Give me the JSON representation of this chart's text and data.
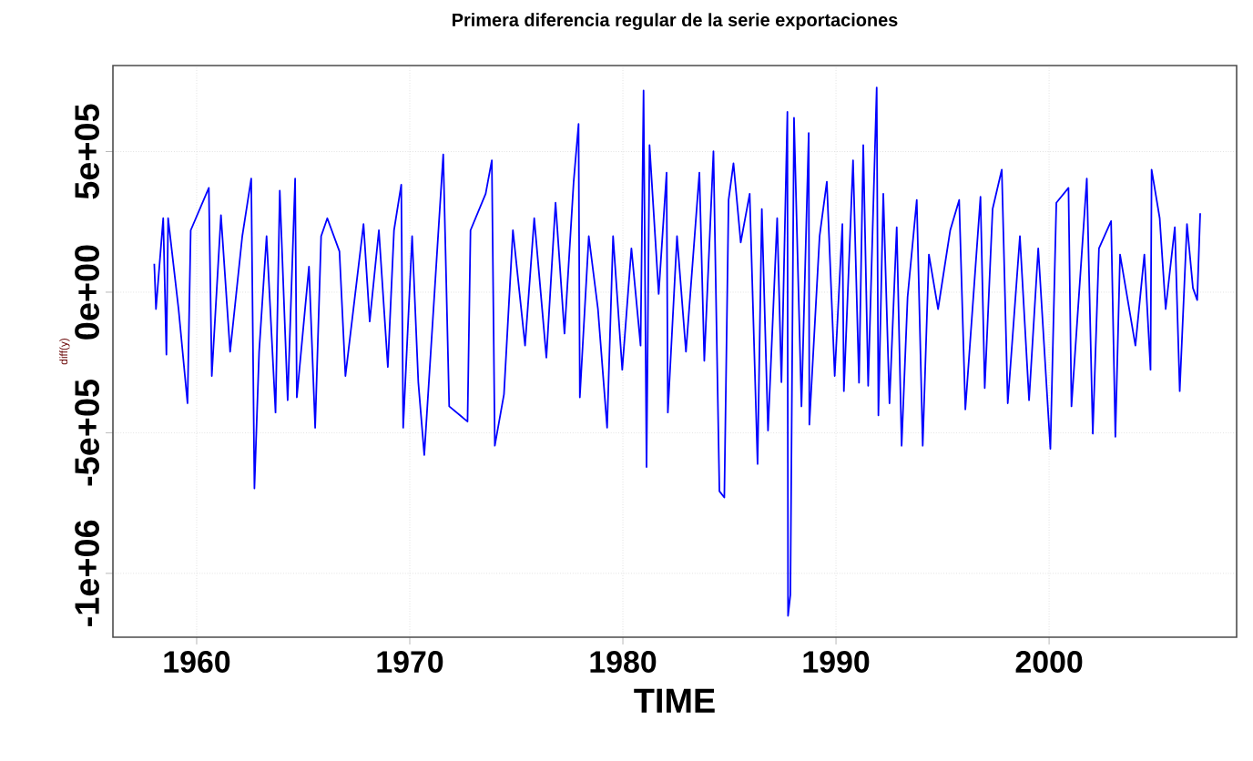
{
  "chart_data": {
    "type": "line",
    "title": "Primera diferencia regular de la serie exportaciones",
    "xlabel": "TIME",
    "ylabel": "diff(y)",
    "color": "#0000ff",
    "grid": true,
    "marker": "none",
    "line_style": "solid",
    "xlim": [
      1956.07,
      2008.8
    ],
    "xticks": [
      1960,
      1970,
      1980,
      1990,
      2000
    ],
    "ylim": [
      -1227000,
      806000
    ],
    "yticks": [
      {
        "value": 500000,
        "label": "5e+05"
      },
      {
        "value": 0,
        "label": "0e+00"
      },
      {
        "value": -500000,
        "label": "-5e+05"
      },
      {
        "value": -1000000,
        "label": "-1e+06"
      }
    ],
    "x": [
      1958.01,
      1958.09,
      1958.43,
      1958.58,
      1958.66,
      1959.15,
      1959.57,
      1959.72,
      1960.57,
      1960.71,
      1961.14,
      1961.57,
      1962.14,
      1962.56,
      1962.71,
      1962.93,
      1963.28,
      1963.7,
      1963.9,
      1964.27,
      1964.62,
      1964.7,
      1965.27,
      1965.56,
      1965.84,
      1966.13,
      1966.7,
      1966.98,
      1967.83,
      1968.12,
      1968.55,
      1968.97,
      1969.26,
      1969.6,
      1969.69,
      1970.11,
      1970.4,
      1970.68,
      1971.57,
      1971.85,
      1972.71,
      1972.85,
      1973.56,
      1973.85,
      1973.99,
      1974.42,
      1974.84,
      1975.41,
      1975.84,
      1976.41,
      1976.84,
      1977.26,
      1977.69,
      1977.92,
      1977.98,
      1978.4,
      1978.83,
      1979.26,
      1979.54,
      1979.97,
      1980.4,
      1980.83,
      1980.97,
      1981.11,
      1981.25,
      1981.68,
      1982.05,
      1982.11,
      1982.54,
      1982.96,
      1983.59,
      1983.82,
      1984.25,
      1984.53,
      1984.76,
      1984.96,
      1985.19,
      1985.53,
      1985.95,
      1986.32,
      1986.52,
      1986.81,
      1987.24,
      1987.44,
      1987.72,
      1987.75,
      1987.86,
      1988.03,
      1988.38,
      1988.72,
      1988.75,
      1989.23,
      1989.57,
      1989.94,
      1990.3,
      1990.37,
      1990.8,
      1991.08,
      1991.28,
      1991.51,
      1991.91,
      1991.99,
      1992.22,
      1992.51,
      1992.85,
      1993.08,
      1993.36,
      1993.79,
      1994.07,
      1994.36,
      1994.79,
      1995.36,
      1995.78,
      1996.07,
      1996.78,
      1996.98,
      1997.35,
      1997.78,
      1998.06,
      1998.63,
      1999.06,
      1999.49,
      2000.06,
      2000.34,
      2000.91,
      2001.05,
      2001.77,
      2002.05,
      2002.34,
      2002.91,
      2003.11,
      2003.33,
      2004.05,
      2004.47,
      2004.76,
      2004.81,
      2005.19,
      2005.47,
      2005.9,
      2006.13,
      2006.47,
      2006.75,
      2006.95,
      2007.09
    ],
    "values": [
      101000,
      -60000,
      263000,
      -222000,
      263000,
      -60000,
      -395000,
      220000,
      371000,
      -298000,
      274000,
      -212000,
      199000,
      404000,
      -698000,
      -212000,
      199000,
      -428000,
      361000,
      -384000,
      404000,
      -374000,
      91000,
      -482000,
      199000,
      263000,
      145000,
      -298000,
      242000,
      -104000,
      220000,
      -266000,
      220000,
      382000,
      -482000,
      199000,
      -320000,
      -579000,
      490000,
      -406000,
      -460000,
      220000,
      350000,
      469000,
      -546000,
      -363000,
      220000,
      -190000,
      263000,
      -233000,
      318000,
      -147000,
      393000,
      598000,
      -374000,
      199000,
      -60000,
      -482000,
      199000,
      -276000,
      156000,
      -190000,
      717000,
      -622000,
      523000,
      -6000,
      425000,
      -428000,
      199000,
      -212000,
      425000,
      -244000,
      501000,
      -708000,
      -730000,
      328000,
      458000,
      177000,
      350000,
      -611000,
      296000,
      -492000,
      263000,
      -320000,
      641000,
      -1151000,
      -1076000,
      620000,
      -406000,
      566000,
      -471000,
      199000,
      393000,
      -298000,
      242000,
      -352000,
      469000,
      -322000,
      523000,
      -333000,
      728000,
      -438000,
      350000,
      -395000,
      231000,
      -546000,
      -17000,
      328000,
      -546000,
      134000,
      -60000,
      220000,
      328000,
      -417000,
      339000,
      -341000,
      296000,
      436000,
      -395000,
      199000,
      -384000,
      156000,
      -557000,
      318000,
      371000,
      -406000,
      404000,
      -503000,
      156000,
      253000,
      -514000,
      134000,
      -190000,
      134000,
      -276000,
      436000,
      263000,
      -60000,
      231000,
      -352000,
      242000,
      15000,
      -28000,
      281000
    ]
  }
}
